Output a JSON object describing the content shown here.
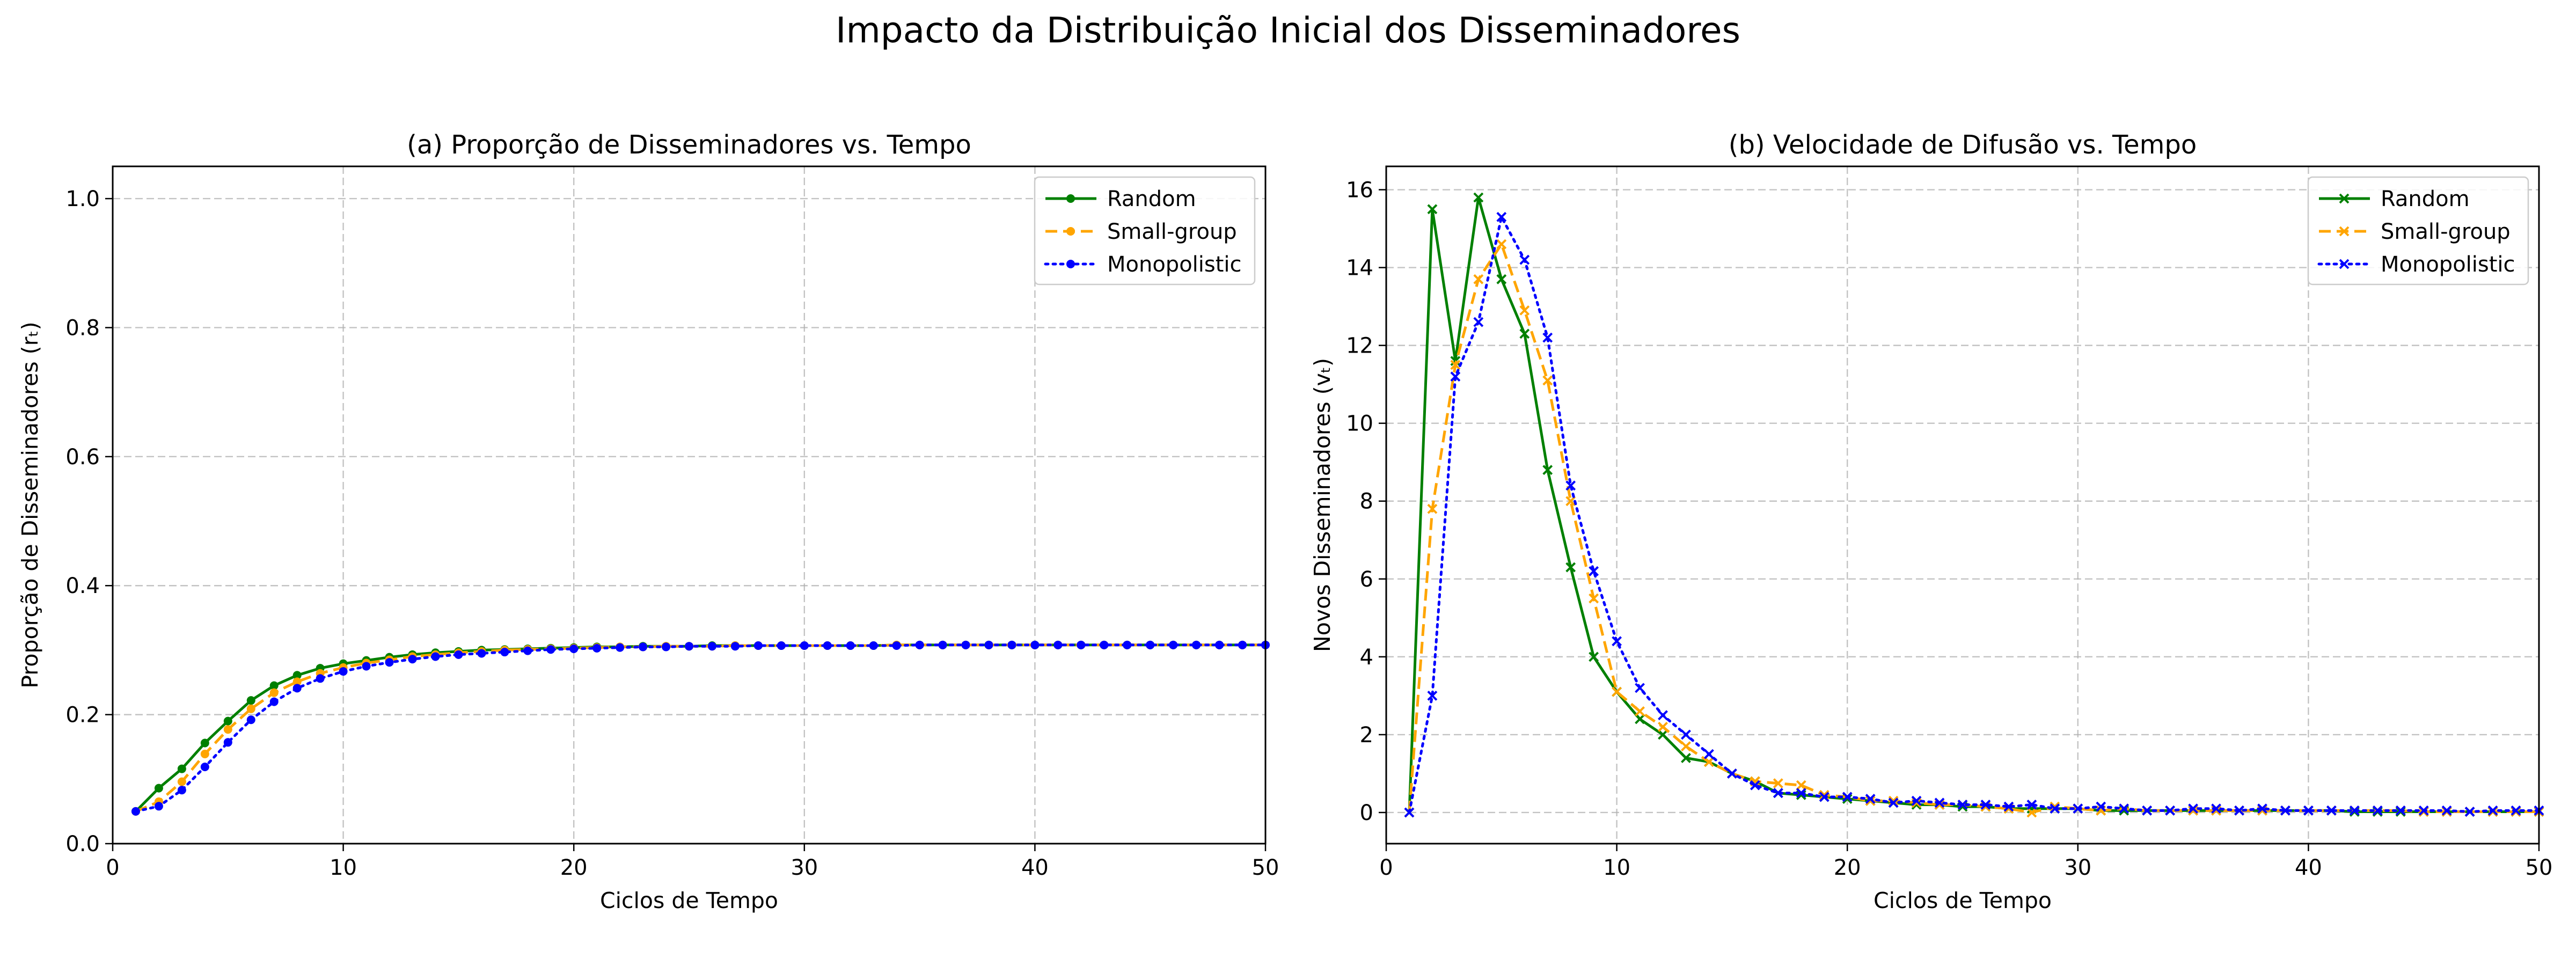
{
  "figure": {
    "title": "Impacto da Distribuição Inicial dos Disseminadores"
  },
  "colors": {
    "Random": "#008000",
    "Small-group": "#ffa500",
    "Monopolistic": "#0000ff",
    "grid": "#b0b0b0"
  },
  "chart_data": [
    {
      "type": "line",
      "title": "(a) Proporção de Disseminadores vs. Tempo",
      "xlabel": "Ciclos de Tempo",
      "ylabel": "Proporção de Disseminadores (rₜ)",
      "xlim": [
        0,
        50
      ],
      "ylim": [
        0,
        1.05
      ],
      "xticks": [
        0,
        10,
        20,
        30,
        40,
        50
      ],
      "yticks": [
        0.0,
        0.2,
        0.4,
        0.6,
        0.8,
        1.0
      ],
      "ytick_labels": [
        "0.0",
        "0.2",
        "0.4",
        "0.6",
        "0.8",
        "1.0"
      ],
      "grid": true,
      "legend": "top-right",
      "x": [
        1,
        2,
        3,
        4,
        5,
        6,
        7,
        8,
        9,
        10,
        11,
        12,
        13,
        14,
        15,
        16,
        17,
        18,
        19,
        20,
        21,
        22,
        23,
        24,
        25,
        26,
        27,
        28,
        29,
        30,
        31,
        32,
        33,
        34,
        35,
        36,
        37,
        38,
        39,
        40,
        41,
        42,
        43,
        44,
        45,
        46,
        47,
        48,
        49,
        50
      ],
      "series": [
        {
          "name": "Random",
          "marker": "dot",
          "dash": "solid",
          "values": [
            0.05,
            0.086,
            0.116,
            0.156,
            0.19,
            0.222,
            0.245,
            0.261,
            0.272,
            0.279,
            0.284,
            0.289,
            0.293,
            0.296,
            0.298,
            0.3,
            0.301,
            0.302,
            0.303,
            0.304,
            0.305,
            0.305,
            0.306,
            0.306,
            0.306,
            0.307,
            0.307,
            0.307,
            0.307,
            0.307,
            0.307,
            0.307,
            0.307,
            0.308,
            0.308,
            0.308,
            0.308,
            0.308,
            0.308,
            0.308,
            0.308,
            0.308,
            0.308,
            0.308,
            0.308,
            0.308,
            0.308,
            0.308,
            0.308,
            0.308
          ]
        },
        {
          "name": "Small-group",
          "marker": "dot",
          "dash": "dashed",
          "values": [
            0.05,
            0.065,
            0.096,
            0.139,
            0.177,
            0.209,
            0.234,
            0.251,
            0.264,
            0.273,
            0.28,
            0.285,
            0.29,
            0.293,
            0.296,
            0.298,
            0.3,
            0.301,
            0.302,
            0.303,
            0.304,
            0.305,
            0.305,
            0.306,
            0.306,
            0.306,
            0.307,
            0.307,
            0.307,
            0.307,
            0.307,
            0.307,
            0.307,
            0.308,
            0.308,
            0.308,
            0.308,
            0.308,
            0.308,
            0.308,
            0.308,
            0.308,
            0.308,
            0.308,
            0.308,
            0.308,
            0.308,
            0.308,
            0.308,
            0.308
          ]
        },
        {
          "name": "Monopolistic",
          "marker": "dot",
          "dash": "dotted",
          "values": [
            0.05,
            0.058,
            0.083,
            0.119,
            0.157,
            0.192,
            0.22,
            0.241,
            0.256,
            0.267,
            0.275,
            0.281,
            0.286,
            0.29,
            0.293,
            0.295,
            0.297,
            0.299,
            0.301,
            0.302,
            0.303,
            0.304,
            0.305,
            0.305,
            0.306,
            0.306,
            0.306,
            0.307,
            0.307,
            0.307,
            0.307,
            0.307,
            0.307,
            0.307,
            0.308,
            0.308,
            0.308,
            0.308,
            0.308,
            0.308,
            0.308,
            0.308,
            0.308,
            0.308,
            0.308,
            0.308,
            0.308,
            0.308,
            0.308,
            0.308
          ]
        }
      ]
    },
    {
      "type": "line",
      "title": "(b) Velocidade de Difusão vs. Tempo",
      "xlabel": "Ciclos de Tempo",
      "ylabel": "Novos Disseminadores (vₜ)",
      "xlim": [
        0,
        50
      ],
      "ylim": [
        -0.8,
        16.6
      ],
      "xticks": [
        0,
        10,
        20,
        30,
        40,
        50
      ],
      "yticks": [
        0,
        2,
        4,
        6,
        8,
        10,
        12,
        14,
        16
      ],
      "ytick_labels": [
        "0",
        "2",
        "4",
        "6",
        "8",
        "10",
        "12",
        "14",
        "16"
      ],
      "grid": true,
      "legend": "top-right",
      "x": [
        1,
        2,
        3,
        4,
        5,
        6,
        7,
        8,
        9,
        10,
        11,
        12,
        13,
        14,
        15,
        16,
        17,
        18,
        19,
        20,
        21,
        22,
        23,
        24,
        25,
        26,
        27,
        28,
        29,
        30,
        31,
        32,
        33,
        34,
        35,
        36,
        37,
        38,
        39,
        40,
        41,
        42,
        43,
        44,
        45,
        46,
        47,
        48,
        49,
        50
      ],
      "series": [
        {
          "name": "Random",
          "marker": "x",
          "dash": "solid",
          "values": [
            0,
            15.5,
            11.6,
            15.8,
            13.7,
            12.3,
            8.8,
            6.3,
            4.0,
            3.1,
            2.4,
            2.0,
            1.4,
            1.3,
            1.0,
            0.8,
            0.5,
            0.45,
            0.4,
            0.35,
            0.3,
            0.25,
            0.2,
            0.2,
            0.15,
            0.15,
            0.1,
            0.1,
            0.1,
            0.1,
            0.05,
            0.05,
            0.05,
            0.05,
            0.05,
            0.05,
            0.05,
            0.05,
            0.05,
            0.05,
            0.05,
            0.02,
            0.02,
            0.02,
            0.02,
            0.02,
            0.02,
            0.02,
            0.02,
            0.02
          ]
        },
        {
          "name": "Small-group",
          "marker": "x",
          "dash": "dashed",
          "values": [
            0,
            7.8,
            11.5,
            13.7,
            14.6,
            12.9,
            11.1,
            8.0,
            5.5,
            3.1,
            2.6,
            2.2,
            1.7,
            1.3,
            1.0,
            0.8,
            0.75,
            0.7,
            0.45,
            0.4,
            0.3,
            0.3,
            0.25,
            0.2,
            0.2,
            0.15,
            0.1,
            0.0,
            0.15,
            0.1,
            0.05,
            0.1,
            0.05,
            0.05,
            0.05,
            0.05,
            0.05,
            0.05,
            0.05,
            0.05,
            0.05,
            0.05,
            0.05,
            0.05,
            0.02,
            0.02,
            0.02,
            0.02,
            0.02,
            0.02
          ]
        },
        {
          "name": "Monopolistic",
          "marker": "x",
          "dash": "dotted",
          "values": [
            0,
            3.0,
            11.2,
            12.6,
            15.3,
            14.2,
            12.2,
            8.4,
            6.2,
            4.4,
            3.2,
            2.5,
            2.0,
            1.5,
            1.0,
            0.7,
            0.5,
            0.5,
            0.4,
            0.4,
            0.35,
            0.25,
            0.3,
            0.25,
            0.2,
            0.2,
            0.15,
            0.2,
            0.1,
            0.1,
            0.15,
            0.1,
            0.05,
            0.05,
            0.1,
            0.1,
            0.05,
            0.1,
            0.05,
            0.05,
            0.05,
            0.05,
            0.05,
            0.05,
            0.05,
            0.05,
            0.02,
            0.05,
            0.05,
            0.05
          ]
        }
      ]
    }
  ]
}
